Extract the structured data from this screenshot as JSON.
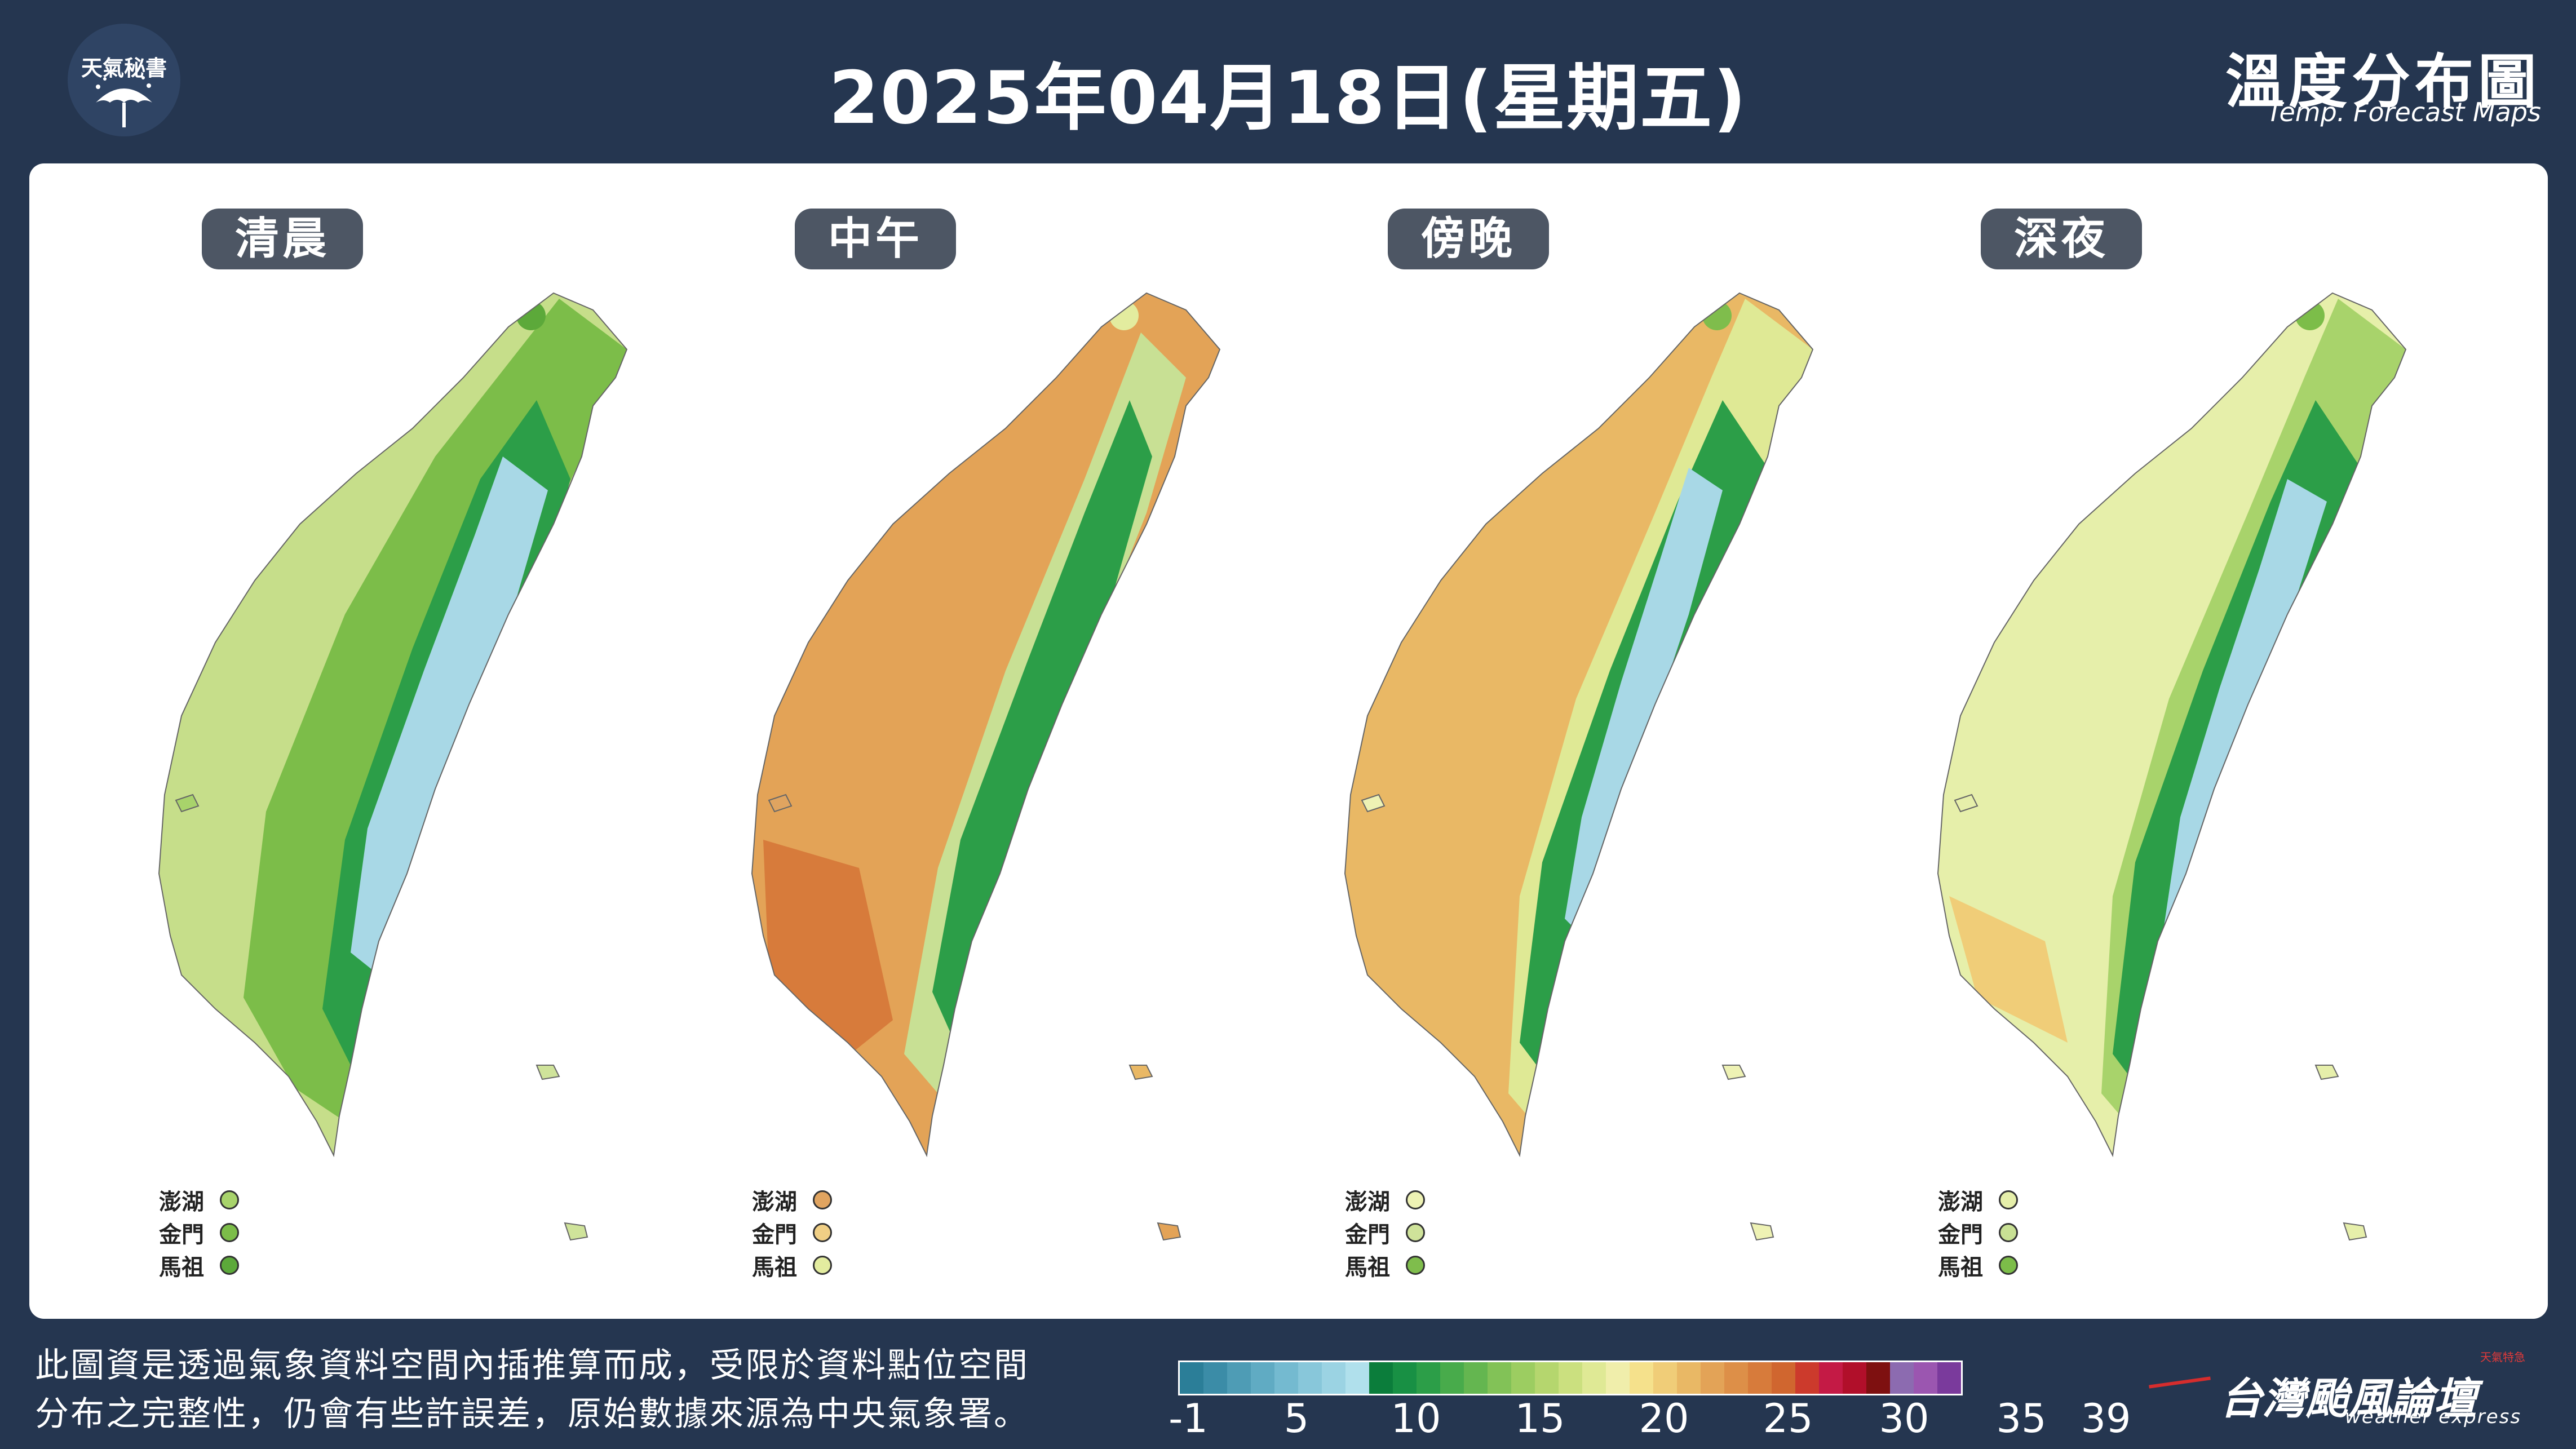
{
  "header": {
    "logo_text": "天氣秘書",
    "title": "2025年04月18日(星期五)",
    "brand_zh": "溫度分布圖",
    "brand_en": "Temp. Forecast Maps"
  },
  "maps": [
    {
      "label": "清晨",
      "islands": [
        {
          "name": "澎湖",
          "color": "#a8d36b"
        },
        {
          "name": "金門",
          "color": "#7cbd49"
        },
        {
          "name": "馬祖",
          "color": "#5ca93a"
        }
      ]
    },
    {
      "label": "中午",
      "islands": [
        {
          "name": "澎湖",
          "color": "#e0a460"
        },
        {
          "name": "金門",
          "color": "#f0cf85"
        },
        {
          "name": "馬祖",
          "color": "#e3ec9f"
        }
      ]
    },
    {
      "label": "傍晚",
      "islands": [
        {
          "name": "澎湖",
          "color": "#eef2b4"
        },
        {
          "name": "金門",
          "color": "#cfe39a"
        },
        {
          "name": "馬祖",
          "color": "#7fbd4c"
        }
      ]
    },
    {
      "label": "深夜",
      "islands": [
        {
          "name": "澎湖",
          "color": "#e6efaa"
        },
        {
          "name": "金門",
          "color": "#c8e094"
        },
        {
          "name": "馬祖",
          "color": "#7cbd49"
        }
      ]
    }
  ],
  "footer": {
    "note_line1": "此圖資是透過氣象資料空間內插推算而成，受限於資料點位空間",
    "note_line2": "分布之完整性，仍會有些許誤差，原始數據來源為中央氣象署。",
    "ticks": [
      "-1",
      "5",
      "10",
      "15",
      "20",
      "25",
      "30",
      "35",
      "39"
    ],
    "brand_zh": "台灣颱風論壇",
    "brand_en": "weather express",
    "brand_badge": "天氣特急"
  },
  "colorbar_colors": [
    "#2b7e98",
    "#3b8ca7",
    "#4e9cb5",
    "#60abc3",
    "#74bad0",
    "#88c7da",
    "#9bd3e3",
    "#b0e0ec",
    "#0b7d3b",
    "#189044",
    "#2c9e48",
    "#48ab4b",
    "#64b650",
    "#82c257",
    "#9ccd61",
    "#b5d66e",
    "#cbe07f",
    "#dfe995",
    "#f0eeab",
    "#f5e18c",
    "#f0cd78",
    "#e9b865",
    "#e3a357",
    "#dd8f48",
    "#d77b3b",
    "#d0662f",
    "#cc3a2c",
    "#c41a45",
    "#b10f2a",
    "#7e1010",
    "#8c6bb0",
    "#9b56b0",
    "#7a3a9c"
  ]
}
